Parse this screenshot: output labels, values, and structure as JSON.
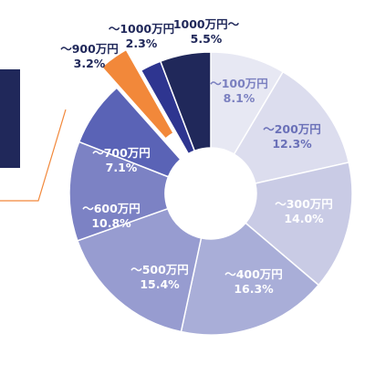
{
  "chart_data": {
    "type": "pie",
    "variant": "donut",
    "start": "12 o'clock, clockwise",
    "categories": [
      "～100万円",
      "～200万円",
      "～300万円",
      "～400万円",
      "～500万円",
      "～600万円",
      "～700万円",
      "～900万円",
      "～1000万円",
      "1000万円～"
    ],
    "values": [
      8.1,
      12.3,
      14.0,
      16.3,
      15.4,
      10.8,
      7.1,
      3.2,
      2.3,
      5.5
    ],
    "value_labels": [
      "8.1%",
      "12.3%",
      "14.0%",
      "16.3%",
      "15.4%",
      "10.8%",
      "7.1%",
      "3.2%",
      "2.3%",
      "5.5%"
    ],
    "highlighted_category": "～900万円",
    "colors": [
      "#e7e8f3",
      "#dcddee",
      "#c9cbe5",
      "#a9aed8",
      "#979cd0",
      "#7c82c4",
      "#5a63b6",
      "#f2883a",
      "#2e3590",
      "#20285a"
    ],
    "label_colors": [
      "#7b80c0",
      "#6a70b8",
      "#ffffff",
      "#ffffff",
      "#ffffff",
      "#ffffff",
      "#ffffff",
      "#20285a",
      "#20285a",
      "#20285a"
    ],
    "legend": "none"
  },
  "page": {
    "left_panel_color": "#20285a",
    "callout_line_color": "#f2883a"
  }
}
